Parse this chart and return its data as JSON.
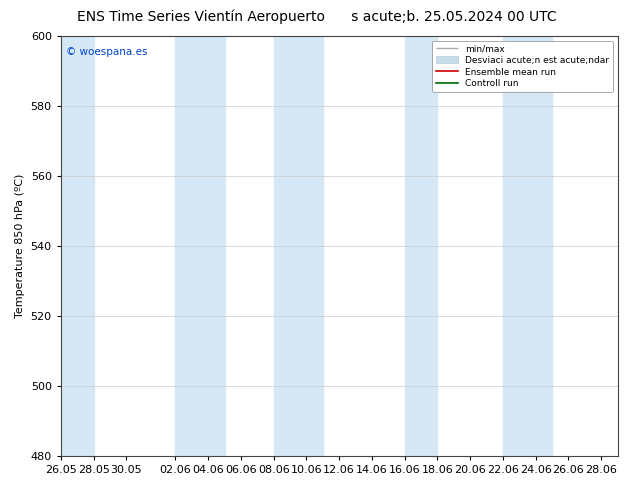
{
  "title": "ENS Time Series Vientín Aeropuerto",
  "subtitle": "s acute;b. 25.05.2024 00 UTC",
  "ylabel": "Temperature 850 hPa (ºC)",
  "ylim": [
    480,
    600
  ],
  "yticks": [
    480,
    500,
    520,
    540,
    560,
    580,
    600
  ],
  "bg_color": "#ffffff",
  "band_color": "#d6e8f5",
  "watermark": "© woespana.es",
  "watermark_color": "#0044cc",
  "legend_labels": [
    "min/max",
    "Desviaci acute;n est acute;ndar",
    "Ensemble mean run",
    "Controll run"
  ],
  "legend_line_colors": [
    "#aaaaaa",
    "#c8dcea",
    "#cc0000",
    "#006600"
  ],
  "x_tick_labels": [
    "26.05",
    "28.05",
    "30.05",
    "02.06",
    "04.06",
    "06.06",
    "08.06",
    "10.06",
    "12.06",
    "14.06",
    "16.06",
    "18.06",
    "20.06",
    "22.06",
    "24.06",
    "26.06",
    "28.06"
  ],
  "total_days": 34,
  "figsize": [
    6.34,
    4.9
  ],
  "dpi": 100,
  "title_fontsize": 10,
  "axis_fontsize": 8,
  "tick_fontsize": 8
}
